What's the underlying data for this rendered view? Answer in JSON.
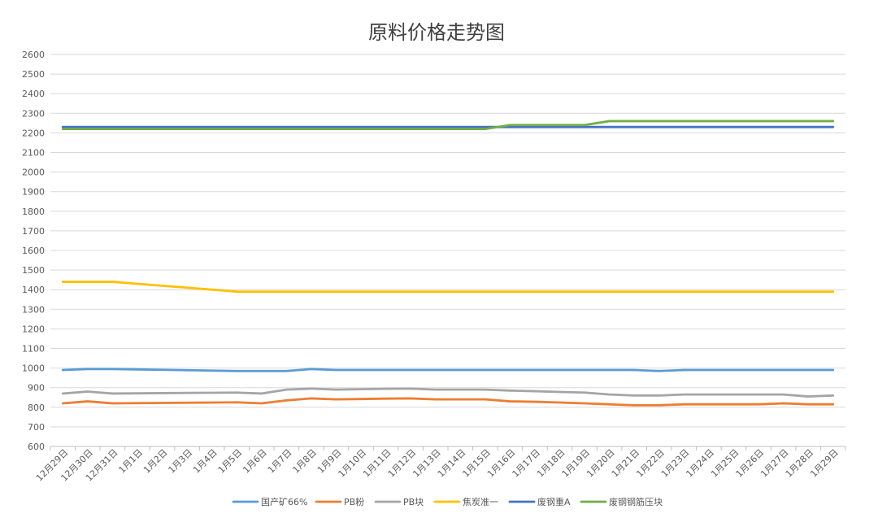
{
  "chart_data": {
    "type": "line",
    "title": "原料价格走势图",
    "xlabel": "",
    "ylabel": "",
    "ylim": [
      600,
      2600
    ],
    "ytick_step": 100,
    "grid": true,
    "legend_position": "bottom",
    "categories": [
      "12月29日",
      "12月30日",
      "12月31日",
      "1月1日",
      "1月2日",
      "1月3日",
      "1月4日",
      "1月5日",
      "1月6日",
      "1月7日",
      "1月8日",
      "1月9日",
      "1月10日",
      "1月11日",
      "1月12日",
      "1月13日",
      "1月14日",
      "1月15日",
      "1月16日",
      "1月17日",
      "1月18日",
      "1月19日",
      "1月20日",
      "1月21日",
      "1月22日",
      "1月23日",
      "1月24日",
      "1月25日",
      "1月26日",
      "1月27日",
      "1月28日",
      "1月29日"
    ],
    "series": [
      {
        "name": "国产矿66%",
        "color": "#5b9bd5",
        "values": [
          990,
          995,
          995,
          993,
          991,
          989,
          987,
          985,
          985,
          985,
          995,
          990,
          990,
          990,
          990,
          990,
          990,
          990,
          990,
          990,
          990,
          990,
          990,
          990,
          985,
          990,
          990,
          990,
          990,
          990,
          990,
          990
        ]
      },
      {
        "name": "PB粉",
        "color": "#ed7d31",
        "values": [
          820,
          830,
          820,
          821,
          822,
          823,
          824,
          825,
          820,
          835,
          845,
          840,
          842,
          844,
          845,
          840,
          840,
          840,
          830,
          828,
          824,
          820,
          815,
          810,
          810,
          815,
          815,
          815,
          815,
          820,
          815,
          815
        ]
      },
      {
        "name": "PB块",
        "color": "#a5a5a5",
        "values": [
          870,
          880,
          870,
          871,
          872,
          873,
          874,
          875,
          870,
          890,
          895,
          890,
          892,
          894,
          895,
          890,
          890,
          890,
          885,
          882,
          878,
          875,
          865,
          860,
          860,
          865,
          865,
          865,
          865,
          865,
          855,
          860
        ]
      },
      {
        "name": "焦炭准一",
        "color": "#ffc000",
        "values": [
          1440,
          1440,
          1440,
          1430,
          1420,
          1410,
          1400,
          1390,
          1390,
          1390,
          1390,
          1390,
          1390,
          1390,
          1390,
          1390,
          1390,
          1390,
          1390,
          1390,
          1390,
          1390,
          1390,
          1390,
          1390,
          1390,
          1390,
          1390,
          1390,
          1390,
          1390,
          1390
        ]
      },
      {
        "name": "废钢重A",
        "color": "#4472c4",
        "values": [
          2230,
          2230,
          2230,
          2230,
          2230,
          2230,
          2230,
          2230,
          2230,
          2230,
          2230,
          2230,
          2230,
          2230,
          2230,
          2230,
          2230,
          2230,
          2230,
          2230,
          2230,
          2230,
          2230,
          2230,
          2230,
          2230,
          2230,
          2230,
          2230,
          2230,
          2230,
          2230
        ]
      },
      {
        "name": "废钢钢筋压块",
        "color": "#70ad47",
        "values": [
          2220,
          2220,
          2220,
          2220,
          2220,
          2220,
          2220,
          2220,
          2220,
          2220,
          2220,
          2220,
          2220,
          2220,
          2220,
          2220,
          2220,
          2220,
          2240,
          2240,
          2240,
          2240,
          2260,
          2260,
          2260,
          2260,
          2260,
          2260,
          2260,
          2260,
          2260,
          2260
        ]
      }
    ]
  }
}
